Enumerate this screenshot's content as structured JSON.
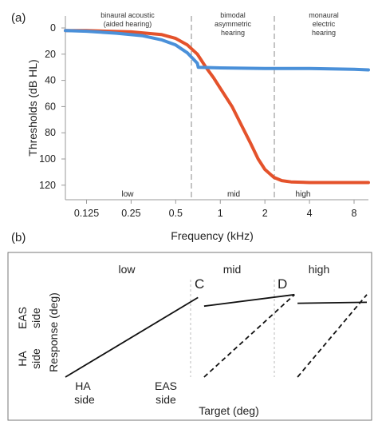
{
  "panel_a": {
    "label": "(a)",
    "ylabel": "Thresholds (dB HL)",
    "xlabel": "Frequency (kHz)",
    "x_ticks": [
      "0.125",
      "0.25",
      "0.5",
      "1",
      "2",
      "4",
      "8"
    ],
    "y_ticks": [
      "0",
      "20",
      "40",
      "60",
      "80",
      "100",
      "120"
    ],
    "regions_top": [
      {
        "line1": "binaural acoustic",
        "line2": "(aided hearing)"
      },
      {
        "line1": "bimodal",
        "line2": "asymmetric",
        "line3": "hearing"
      },
      {
        "line1": "monaural",
        "line2": "electric",
        "line3": "hearing"
      }
    ],
    "regions_bottom": [
      "low",
      "mid",
      "high"
    ]
  },
  "panel_b": {
    "label": "(b)",
    "ylabel": "Response (deg)",
    "xlabel": "Target (deg)",
    "regions": [
      "low",
      "mid",
      "high"
    ],
    "y_side_top": {
      "line1": "EAS",
      "line2": "side"
    },
    "y_side_bottom": {
      "line1": "HA",
      "line2": "side"
    },
    "x_side_left": {
      "line1": "HA",
      "line2": "side"
    },
    "x_side_right": {
      "line1": "EAS",
      "line2": "side"
    },
    "point_c": "C",
    "point_d": "D"
  },
  "colors": {
    "blue_series": "#4a90d9",
    "red_series": "#e4522b",
    "axis": "#9a9a9a"
  },
  "chart_data": [
    {
      "type": "line",
      "x_scale": "log",
      "xlim": [
        0.09,
        10
      ],
      "ylim": [
        0,
        125
      ],
      "y_inverted": true,
      "grid": false,
      "series": [
        {
          "x": [
            0.09,
            0.125,
            0.2,
            0.3,
            0.4,
            0.5,
            0.6,
            0.7,
            0.71,
            1,
            2,
            4,
            8,
            10
          ],
          "values": [
            2,
            2.5,
            4,
            6,
            9,
            13,
            19,
            27,
            30,
            30.5,
            31,
            31,
            31.5,
            32
          ]
        },
        {
          "x": [
            0.09,
            0.125,
            0.25,
            0.4,
            0.5,
            0.6,
            0.7,
            0.8,
            0.9,
            1,
            1.2,
            1.4,
            1.6,
            1.8,
            2,
            2.3,
            2.6,
            3,
            4,
            6,
            8,
            10
          ],
          "values": [
            2,
            2,
            3,
            5,
            8,
            13,
            20,
            30,
            38,
            46,
            60,
            75,
            88,
            100,
            108,
            114,
            116.5,
            117.5,
            118,
            118,
            118,
            118
          ]
        }
      ],
      "region_boundaries_khz": [
        0.7,
        2.7
      ]
    },
    {
      "type": "line",
      "xlim": [
        0,
        1
      ],
      "ylim": [
        0,
        1
      ],
      "series": [
        {
          "style": "solid",
          "x": [
            0,
            0.44
          ],
          "values": [
            0,
            0.83
          ]
        },
        {
          "style": "solid",
          "x": [
            0.46,
            0.76
          ],
          "values": [
            0.74,
            0.86
          ]
        },
        {
          "style": "solid",
          "x": [
            0.77,
            1
          ],
          "values": [
            0.77,
            0.78
          ]
        },
        {
          "style": "dashed",
          "x": [
            0.46,
            0.76
          ],
          "values": [
            0,
            0.86
          ]
        },
        {
          "style": "dashed",
          "x": [
            0.77,
            1
          ],
          "values": [
            0,
            0.86
          ]
        }
      ],
      "region_boundaries": [
        0.45,
        0.765
      ]
    }
  ]
}
